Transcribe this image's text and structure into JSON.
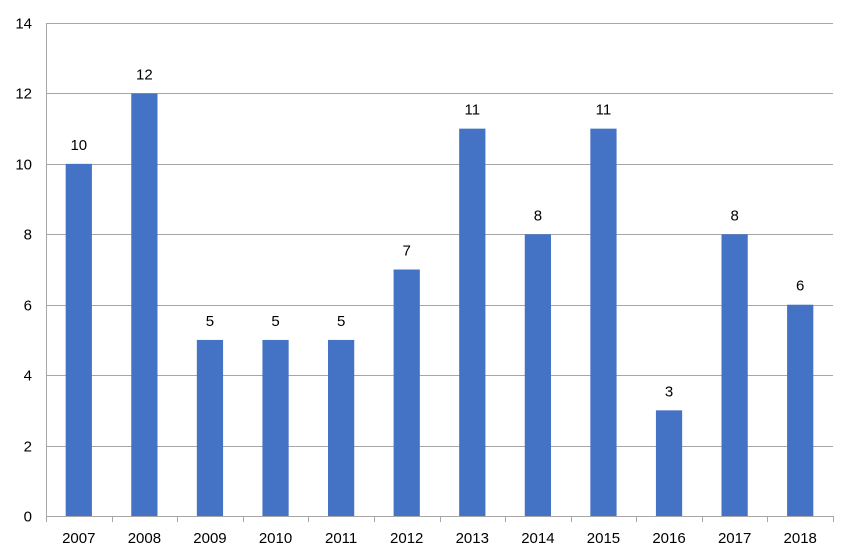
{
  "chart_data": {
    "type": "bar",
    "categories": [
      "2007",
      "2008",
      "2009",
      "2010",
      "2011",
      "2012",
      "2013",
      "2014",
      "2015",
      "2016",
      "2017",
      "2018"
    ],
    "values": [
      10,
      12,
      5,
      5,
      5,
      7,
      11,
      8,
      11,
      3,
      8,
      6
    ],
    "title": "",
    "xlabel": "",
    "ylabel": "",
    "ylim": [
      0,
      14
    ],
    "yticks": [
      0,
      2,
      4,
      6,
      8,
      10,
      12,
      14
    ],
    "grid": true,
    "legend": "none",
    "data_labels": true,
    "bar_color": "#4472C4",
    "grid_color": "#A6A6A6"
  }
}
